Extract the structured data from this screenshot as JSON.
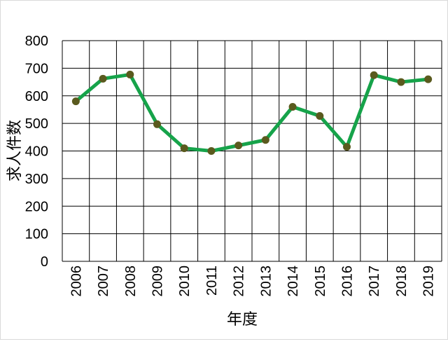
{
  "chart_data": {
    "type": "line",
    "xlabel": "年度",
    "ylabel": "求人件数",
    "categories": [
      "2006",
      "2007",
      "2008",
      "2009",
      "2010",
      "2011",
      "2012",
      "2013",
      "2014",
      "2015",
      "2016",
      "2017",
      "2018",
      "2019"
    ],
    "series": [
      {
        "values": [
          580,
          662,
          677,
          497,
          410,
          400,
          420,
          440,
          560,
          527,
          415,
          675,
          650,
          660
        ]
      }
    ],
    "ylim": [
      0,
      800
    ],
    "yticks": [
      "0",
      "100",
      "200",
      "300",
      "400",
      "500",
      "600",
      "700",
      "800"
    ],
    "grid": true,
    "line_color": "#16a34a",
    "marker_color": "#5a5a1e"
  }
}
